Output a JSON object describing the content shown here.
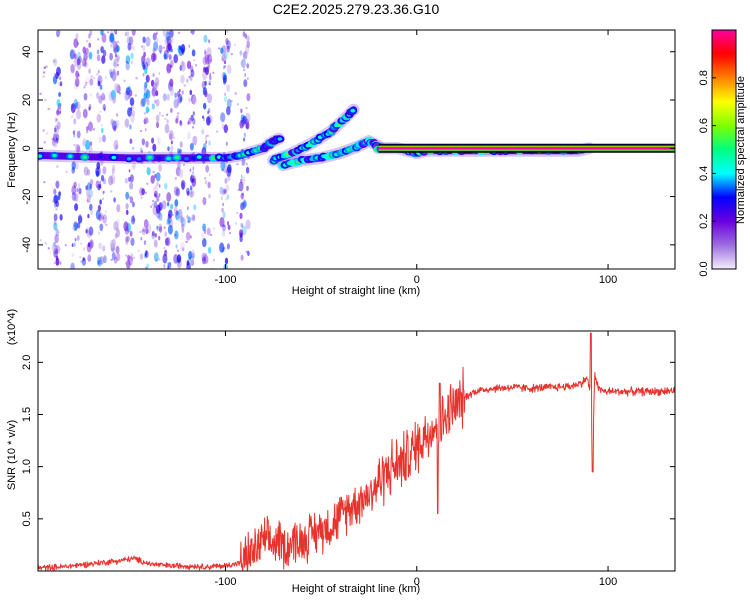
{
  "figure_title": "C2E2.2025.279.23.36.G10",
  "chart_data": [
    {
      "id": "spectrogram",
      "type": "heatmap",
      "title": "C2E2.2025.279.23.36.G10",
      "xlabel": "Height of straight line (km)",
      "ylabel": "Frequency (Hz)",
      "xlim": [
        -198,
        135
      ],
      "ylim": [
        -50,
        49
      ],
      "x_ticks": [
        {
          "value": -100,
          "label": "-100"
        },
        {
          "value": 0,
          "label": "0"
        },
        {
          "value": 100,
          "label": "100"
        }
      ],
      "y_ticks": [
        {
          "value": 40,
          "label": "40"
        },
        {
          "value": 20,
          "label": "20"
        },
        {
          "value": 0,
          "label": "0"
        },
        {
          "value": -20,
          "label": "-20"
        },
        {
          "value": -40,
          "label": "-40"
        }
      ],
      "colorbar": {
        "label": "Normalized spectral amplitude",
        "range": [
          0.0,
          1.0
        ],
        "colors": [
          "#f4eefb",
          "#9b6ee0",
          "#6a00e0",
          "#0000ff",
          "#00ffff",
          "#00ff80",
          "#80ff00",
          "#ffff00",
          "#ff8000",
          "#ff0000",
          "#ff00a0"
        ],
        "ticks": [
          {
            "value": 0.0,
            "label": "0.0"
          },
          {
            "value": 0.2,
            "label": "0.2"
          },
          {
            "value": 0.4,
            "label": "0.4"
          },
          {
            "value": 0.6,
            "label": "0.6"
          },
          {
            "value": 0.8,
            "label": "0.8"
          }
        ]
      },
      "ridges": [
        {
          "name": "main-carrier",
          "points": [
            [
              -197,
              -3
            ],
            [
              -150,
              -4
            ],
            [
              -120,
              -4
            ],
            [
              -100,
              -4
            ],
            [
              -92,
              -3
            ],
            [
              -80,
              0
            ],
            [
              -75,
              3
            ],
            [
              -72,
              4
            ]
          ],
          "peak": 0.55
        },
        {
          "name": "upper-branch",
          "points": [
            [
              -75,
              -5
            ],
            [
              -65,
              -2
            ],
            [
              -55,
              2
            ],
            [
              -45,
              7
            ],
            [
              -38,
              12
            ],
            [
              -33,
              16
            ]
          ],
          "peak": 0.6
        },
        {
          "name": "lower-branch",
          "points": [
            [
              -70,
              -7
            ],
            [
              -60,
              -5
            ],
            [
              -50,
              -4
            ],
            [
              -40,
              -2
            ],
            [
              -30,
              1
            ],
            [
              -25,
              3
            ],
            [
              -20,
              1
            ]
          ],
          "peak": 0.6
        },
        {
          "name": "mid-band",
          "points": [
            [
              -20,
              0
            ],
            [
              -10,
              0
            ],
            [
              -5,
              -1
            ],
            [
              0,
              -2
            ],
            [
              5,
              -1
            ],
            [
              20,
              -1
            ],
            [
              40,
              -1
            ],
            [
              60,
              -1
            ],
            [
              85,
              -1
            ],
            [
              90,
              0
            ]
          ],
          "peak": 0.75
        },
        {
          "name": "steady-line",
          "points": [
            [
              -20,
              0
            ],
            [
              135,
              0
            ]
          ],
          "peak": 1.0
        }
      ],
      "noise_columns": [
        -188,
        -178,
        -172,
        -165,
        -158,
        -150,
        -142,
        -136,
        -130,
        -124,
        -118,
        -110,
        -100,
        -90
      ]
    },
    {
      "id": "snr",
      "type": "line",
      "title": "",
      "xlabel": "Height of straight line (km)",
      "ylabel": "SNR (10 * v/v)",
      "y_multiplier": "(x10^4)",
      "xlim": [
        -198,
        135
      ],
      "ylim": [
        0,
        2.3
      ],
      "x_ticks": [
        {
          "value": -100,
          "label": "-100"
        },
        {
          "value": 0,
          "label": "0"
        },
        {
          "value": 100,
          "label": "100"
        }
      ],
      "y_ticks": [
        {
          "value": 0.5,
          "label": "0.5"
        },
        {
          "value": 1.0,
          "label": "1.0"
        },
        {
          "value": 1.5,
          "label": "1.5"
        },
        {
          "value": 2.0,
          "label": "2.0"
        }
      ],
      "series": [
        {
          "name": "SNR",
          "color": "#e8322c",
          "x": [
            -198,
            -185,
            -175,
            -165,
            -155,
            -148,
            -140,
            -130,
            -120,
            -110,
            -100,
            -92,
            -88,
            -84,
            -80,
            -76,
            -72,
            -68,
            -64,
            -60,
            -56,
            -52,
            -48,
            -44,
            -40,
            -36,
            -32,
            -28,
            -24,
            -22,
            -20,
            -16,
            -12,
            -8,
            -4,
            0,
            4,
            8,
            10,
            12,
            14,
            18,
            22,
            24,
            28,
            32,
            40,
            50,
            60,
            70,
            80,
            86,
            89,
            91,
            92,
            93,
            95,
            98,
            105,
            115,
            125,
            135
          ],
          "y": [
            0.03,
            0.04,
            0.06,
            0.08,
            0.1,
            0.12,
            0.07,
            0.05,
            0.05,
            0.04,
            0.05,
            0.08,
            0.15,
            0.2,
            0.3,
            0.25,
            0.3,
            0.22,
            0.3,
            0.28,
            0.34,
            0.38,
            0.42,
            0.45,
            0.52,
            0.6,
            0.65,
            0.7,
            0.75,
            0.8,
            0.85,
            0.95,
            1.0,
            1.05,
            1.1,
            1.2,
            1.3,
            1.38,
            1.4,
            1.3,
            1.45,
            1.55,
            1.6,
            1.65,
            1.7,
            1.73,
            1.75,
            1.76,
            1.75,
            1.76,
            1.77,
            1.8,
            1.85,
            1.7,
            1.05,
            1.9,
            1.75,
            1.72,
            1.72,
            1.72,
            1.72,
            1.73
          ]
        }
      ],
      "spikes": [
        {
          "x": 11,
          "y": 0.55
        },
        {
          "x": 12,
          "y": 1.8
        },
        {
          "x": 91,
          "y": 2.28
        },
        {
          "x": 92,
          "y": 0.95
        }
      ],
      "noise_amplitude_profile": [
        {
          "from": -198,
          "to": -92,
          "amp": 0.03
        },
        {
          "from": -92,
          "to": -22,
          "amp": 0.22
        },
        {
          "from": -22,
          "to": 25,
          "amp": 0.28
        },
        {
          "from": 25,
          "to": 135,
          "amp": 0.04
        }
      ]
    }
  ]
}
